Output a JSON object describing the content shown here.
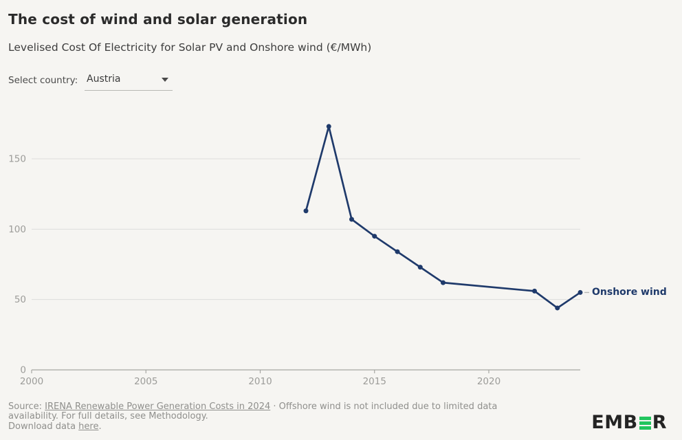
{
  "header": {
    "title": "The cost of wind and solar generation",
    "subtitle": "Levelised Cost Of Electricity for Solar PV and Onshore wind (€/MWh)"
  },
  "controls": {
    "select_label": "Select country:",
    "selected_country": "Austria"
  },
  "chart_data": {
    "type": "line",
    "title": "The cost of wind and solar generation",
    "subtitle": "Levelised Cost Of Electricity for Solar PV and Onshore wind (€/MWh)",
    "xlabel": "",
    "ylabel": "€/MWh",
    "xlim": [
      2000,
      2024
    ],
    "ylim": [
      0,
      175
    ],
    "x_ticks": [
      2000,
      2005,
      2010,
      2015,
      2020
    ],
    "y_ticks": [
      0,
      50,
      100,
      150
    ],
    "grid": "horizontal",
    "legend_position": "end-of-line",
    "series": [
      {
        "name": "Onshore wind",
        "x": [
          2012,
          2013,
          2014,
          2015,
          2016,
          2017,
          2018,
          2022,
          2023,
          2024
        ],
        "values": [
          113,
          173,
          107,
          95,
          84,
          73,
          62,
          56,
          44,
          55
        ]
      }
    ],
    "colors": {
      "line": "#1f3a6b",
      "grid": "#dddddc",
      "axis": "#a6a6a3",
      "tick_label": "#9c9c99",
      "label_dash": "#b5b5b2"
    }
  },
  "footer": {
    "source_prefix": "Source: ",
    "source_link": "IRENA Renewable Power Generation Costs in 2024",
    "note": " · Offshore wind is not included due to limited data availability. For full details, see Methodology.",
    "download_prefix": "Download data ",
    "download_link": "here",
    "download_suffix": "."
  },
  "logo": {
    "pre": "EMB",
    "post": "R",
    "accent_color": "#22c55e"
  }
}
